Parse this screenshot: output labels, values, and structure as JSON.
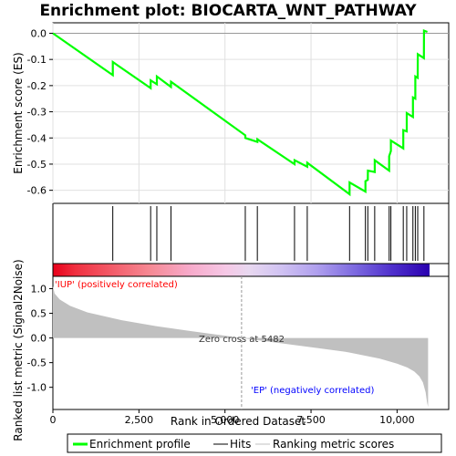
{
  "chart_data": {
    "type": "line",
    "title": "Enrichment plot: BIOCARTA_WNT_PATHWAY",
    "top_panel": {
      "ylabel": "Enrichment score (ES)",
      "ylim": [
        -0.65,
        0.04
      ],
      "yticks": [
        0.0,
        -0.1,
        -0.2,
        -0.3,
        -0.4,
        -0.5,
        -0.6
      ],
      "ytick_labels": [
        "0.0",
        "-0.1",
        "-0.2",
        "-0.3",
        "-0.4",
        "-0.5",
        "-0.6"
      ],
      "series": [
        {
          "name": "Enrichment profile",
          "color": "#00ff00",
          "x": [
            0,
            1740,
            1741,
            2840,
            2841,
            3020,
            3021,
            3430,
            3431,
            5590,
            5591,
            5940,
            5941,
            7020,
            7021,
            7390,
            7391,
            8620,
            8621,
            9080,
            9081,
            9150,
            9151,
            9350,
            9351,
            9770,
            9771,
            9820,
            9821,
            10180,
            10181,
            10280,
            10281,
            10460,
            10461,
            10530,
            10531,
            10600,
            10601,
            10780,
            10781,
            10880
          ],
          "y": [
            0.0,
            -0.16,
            -0.11,
            -0.21,
            -0.18,
            -0.195,
            -0.165,
            -0.205,
            -0.185,
            -0.39,
            -0.4,
            -0.415,
            -0.405,
            -0.5,
            -0.485,
            -0.51,
            -0.495,
            -0.615,
            -0.57,
            -0.605,
            -0.565,
            -0.56,
            -0.525,
            -0.53,
            -0.485,
            -0.525,
            -0.47,
            -0.45,
            -0.41,
            -0.44,
            -0.37,
            -0.375,
            -0.305,
            -0.32,
            -0.245,
            -0.25,
            -0.165,
            -0.17,
            -0.08,
            -0.095,
            0.01,
            0.005
          ]
        }
      ]
    },
    "hits_panel": {
      "hit_positions": [
        1740,
        2840,
        3020,
        3430,
        5590,
        5940,
        7020,
        7390,
        8620,
        9080,
        9150,
        9350,
        9770,
        9820,
        10180,
        10280,
        10460,
        10530,
        10600,
        10780
      ]
    },
    "bottom_panel": {
      "ylabel": "Ranked list metric (Signal2Noise)",
      "xlabel": "Rank in Ordered Dataset",
      "ylim": [
        -1.45,
        1.25
      ],
      "yticks": [
        1.0,
        0.5,
        0.0,
        -0.5,
        -1.0
      ],
      "ytick_labels": [
        "1.0",
        "0.5",
        "0.0",
        "-0.5",
        "-1.0"
      ],
      "n_genes": 10900,
      "metric_profile": {
        "x": [
          0,
          50,
          200,
          500,
          1000,
          2000,
          3000,
          4000,
          5482,
          7000,
          8500,
          9500,
          10000,
          10300,
          10500,
          10650,
          10750,
          10830,
          10870,
          10900
        ],
        "y": [
          1.05,
          0.9,
          0.78,
          0.65,
          0.52,
          0.36,
          0.24,
          0.14,
          0.0,
          -0.14,
          -0.28,
          -0.42,
          -0.52,
          -0.6,
          -0.68,
          -0.78,
          -0.9,
          -1.1,
          -1.3,
          -1.4
        ]
      },
      "positive_label": "'IUP' (positively correlated)",
      "negative_label": "'EP' (negatively correlated)",
      "zero_cross_label": "Zero cross at 5482",
      "zero_cross": 5482
    },
    "xlim": [
      0,
      11500
    ],
    "xticks": [
      0,
      2500,
      5000,
      7500,
      10000
    ],
    "xtick_labels": [
      "0",
      "2,500",
      "5,000",
      "7,500",
      "10,000"
    ],
    "legend": {
      "placement": "bottom",
      "items": [
        {
          "label": "Enrichment profile",
          "color": "#00ff00"
        },
        {
          "label": "Hits",
          "color": "#000000"
        },
        {
          "label": "Ranking metric scores",
          "color": "#c0c0c0"
        }
      ]
    },
    "colors": {
      "profile": "#00ff00",
      "metric_fill": "#c0c0c0",
      "positive_text": "#ff0000",
      "negative_text": "#0000ff",
      "grid": "#e0e0e0"
    }
  }
}
